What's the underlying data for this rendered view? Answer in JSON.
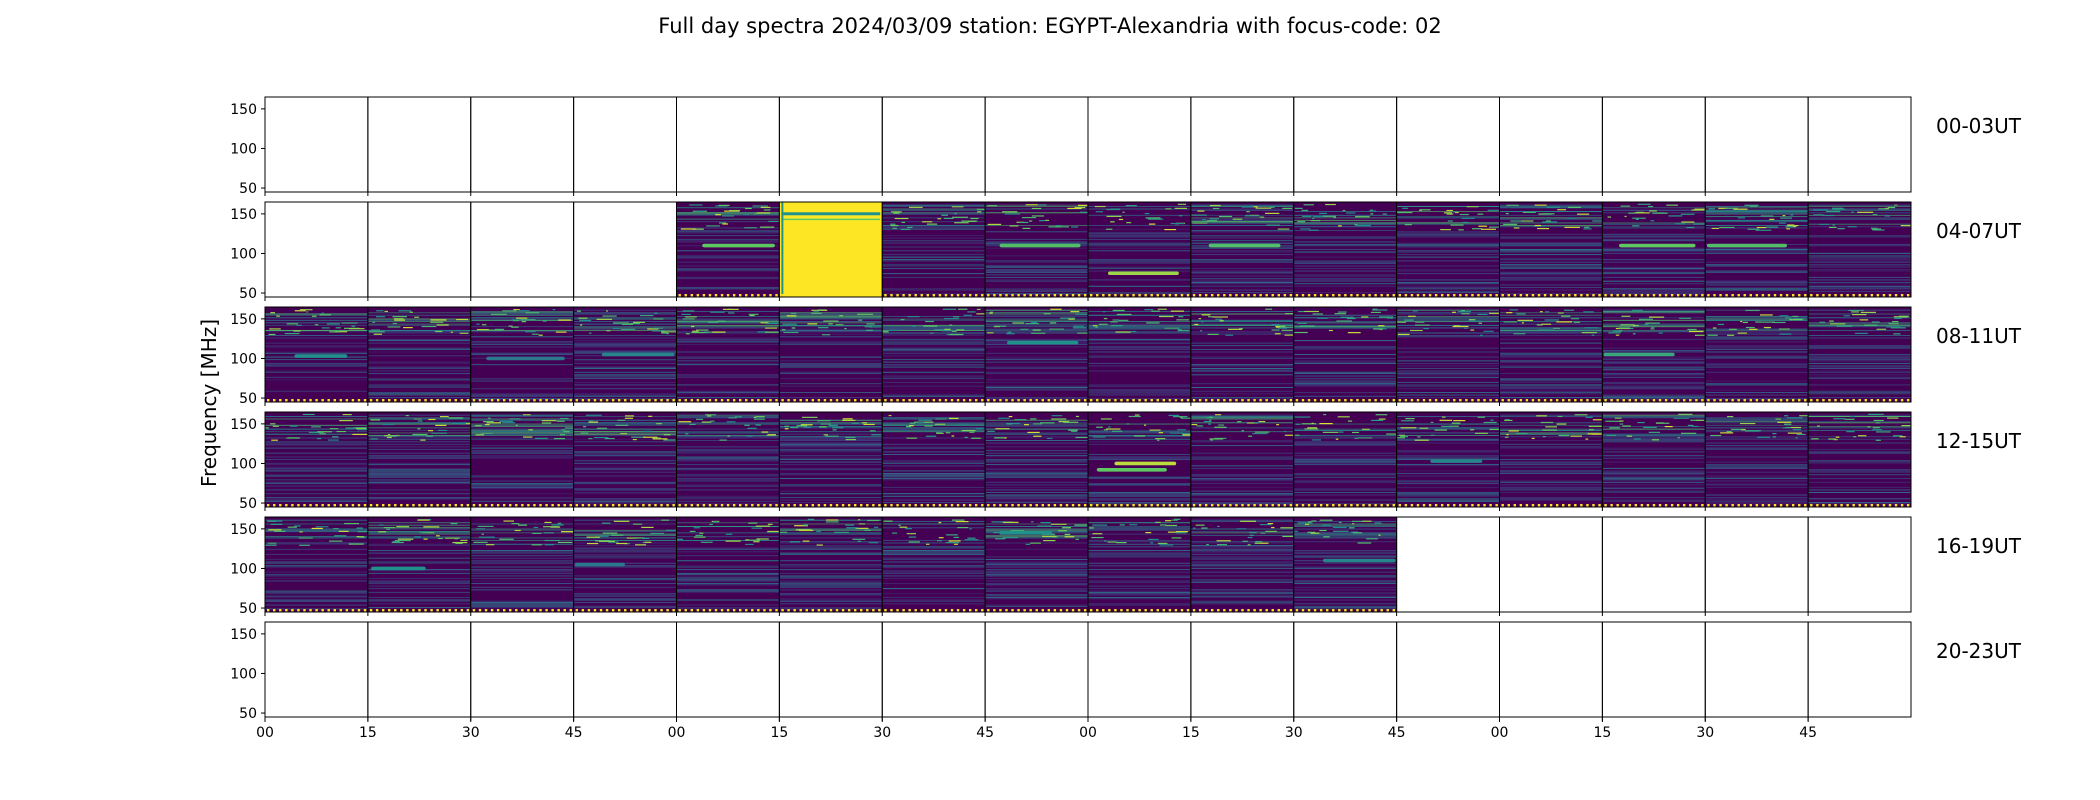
{
  "chart_data": {
    "type": "heatmap",
    "title": "Full day spectra 2024/03/09 station: EGYPT-Alexandria with focus-code: 02",
    "ylabel": "Frequency [MHz]",
    "xlabel": "",
    "ylim": [
      45,
      165
    ],
    "yticks": [
      50,
      100,
      150
    ],
    "xticks": [
      "00",
      "15",
      "30",
      "45",
      "00",
      "15",
      "30",
      "45",
      "00",
      "15",
      "30",
      "45",
      "00",
      "15",
      "30",
      "45"
    ],
    "panels_per_row": 16,
    "panel_minutes": 15,
    "colormap": [
      "#440154",
      "#3b528b",
      "#21918c",
      "#5ec962",
      "#fde725"
    ],
    "rows": [
      {
        "label": "00-03UT",
        "has_data": [
          0,
          0,
          0,
          0,
          0,
          0,
          0,
          0,
          0,
          0,
          0,
          0,
          0,
          0,
          0,
          0
        ]
      },
      {
        "label": "04-07UT",
        "has_data": [
          0,
          0,
          0,
          0,
          1,
          1,
          1,
          1,
          1,
          1,
          1,
          1,
          1,
          1,
          1,
          1
        ],
        "saturated_panels": [
          5
        ],
        "features": [
          {
            "panel": 4,
            "freq": 110,
            "intensity": 0.75
          },
          {
            "panel": 5,
            "freq": 150,
            "intensity": 0.3
          },
          {
            "panel": 7,
            "freq": 110,
            "intensity": 0.7
          },
          {
            "panel": 8,
            "freq": 75,
            "intensity": 0.85
          },
          {
            "panel": 9,
            "freq": 110,
            "intensity": 0.7
          },
          {
            "panel": 13,
            "freq": 110,
            "intensity": 0.75
          },
          {
            "panel": 14,
            "freq": 110,
            "intensity": 0.7
          }
        ]
      },
      {
        "label": "08-11UT",
        "has_data": [
          1,
          1,
          1,
          1,
          1,
          1,
          1,
          1,
          1,
          1,
          1,
          1,
          1,
          1,
          1,
          1
        ],
        "features": [
          {
            "panel": 0,
            "freq": 103,
            "intensity": 0.5
          },
          {
            "panel": 2,
            "freq": 100,
            "intensity": 0.4
          },
          {
            "panel": 3,
            "freq": 105,
            "intensity": 0.45
          },
          {
            "panel": 7,
            "freq": 120,
            "intensity": 0.5
          },
          {
            "panel": 13,
            "freq": 105,
            "intensity": 0.6
          }
        ]
      },
      {
        "label": "12-15UT",
        "has_data": [
          1,
          1,
          1,
          1,
          1,
          1,
          1,
          1,
          1,
          1,
          1,
          1,
          1,
          1,
          1,
          1
        ],
        "features": [
          {
            "panel": 8,
            "freq": 100,
            "intensity": 0.9
          },
          {
            "panel": 8,
            "freq": 92,
            "intensity": 0.75
          },
          {
            "panel": 11,
            "freq": 103,
            "intensity": 0.45
          }
        ]
      },
      {
        "label": "16-19UT",
        "has_data": [
          1,
          1,
          1,
          1,
          1,
          1,
          1,
          1,
          1,
          1,
          1,
          0,
          0,
          0,
          0,
          0
        ],
        "features": [
          {
            "panel": 1,
            "freq": 100,
            "intensity": 0.5
          },
          {
            "panel": 3,
            "freq": 105,
            "intensity": 0.4
          },
          {
            "panel": 7,
            "freq": 145,
            "intensity": 0.5
          },
          {
            "panel": 10,
            "freq": 110,
            "intensity": 0.45
          }
        ]
      },
      {
        "label": "20-23UT",
        "has_data": [
          0,
          0,
          0,
          0,
          0,
          0,
          0,
          0,
          0,
          0,
          0,
          0,
          0,
          0,
          0,
          0
        ]
      }
    ]
  }
}
